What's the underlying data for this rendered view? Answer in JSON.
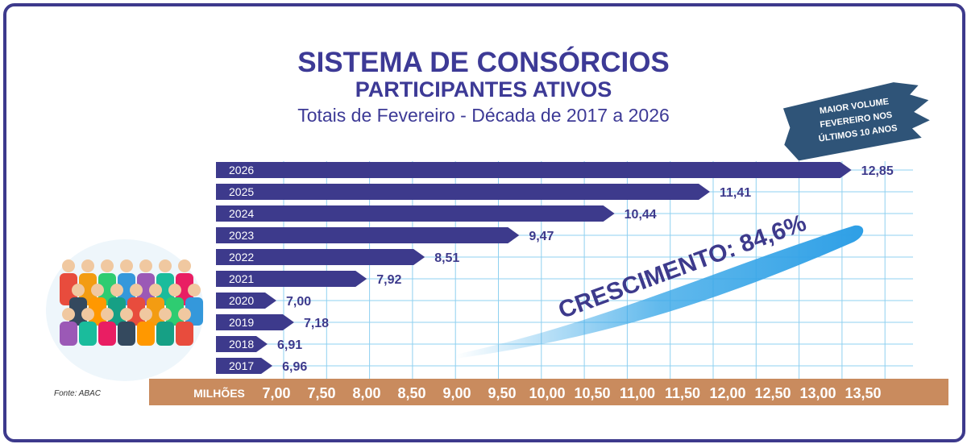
{
  "title": "SISTEMA DE CONSÓRCIOS",
  "subtitle": "PARTICIPANTES ATIVOS",
  "subtitle2": "Totais de Fevereiro - Década de 2017 a 2026",
  "badge": [
    "MAIOR VOLUME",
    "FEVEREIRO NOS",
    "ÚLTIMOS 10 ANOS"
  ],
  "source": "Fonte: ABAC",
  "growth": "CRESCIMENTO: 84,6%",
  "colors": {
    "bar": "#3d3a8c",
    "axis_band": "#c98b5e",
    "grid": "#8fd0f0",
    "badge": "#2f5478",
    "arrow": "#3aa8e8"
  },
  "chart_data": {
    "type": "bar",
    "orientation": "horizontal",
    "categories": [
      "2026",
      "2025",
      "2024",
      "2023",
      "2022",
      "2021",
      "2020",
      "2019",
      "2018",
      "2017"
    ],
    "values": [
      12.85,
      11.41,
      10.44,
      9.47,
      8.51,
      7.92,
      7.0,
      7.18,
      6.91,
      6.96
    ],
    "labels": [
      "12,85",
      "11,41",
      "10,44",
      "9,47",
      "8,51",
      "7,92",
      "7,00",
      "7,18",
      "6,91",
      "6,96"
    ],
    "xlabel": "MILHÕES",
    "xticks": [
      "7,00",
      "7,50",
      "8,00",
      "8,50",
      "9,00",
      "9,50",
      "10,00",
      "10,50",
      "11,00",
      "11,50",
      "12,00",
      "12,50",
      "13,00",
      "13,50"
    ],
    "grid": true
  }
}
